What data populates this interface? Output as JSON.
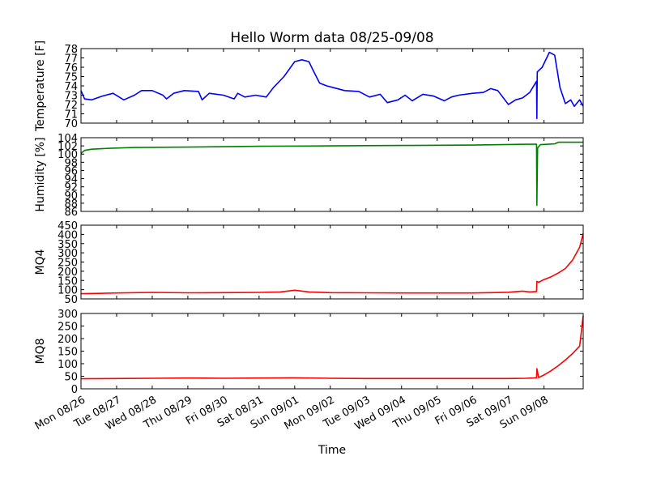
{
  "chart_data": {
    "title": "Hello Worm data 08/25-09/08",
    "xlabel": "Time",
    "x_tick_labels": [
      "Mon 08/26",
      "Tue 08/27",
      "Wed 08/28",
      "Thu 08/29",
      "Fri 08/30",
      "Sat 08/31",
      "Sun 09/01",
      "Mon 09/02",
      "Tue 09/03",
      "Wed 09/04",
      "Thu 09/05",
      "Fri 09/06",
      "Sat 09/07",
      "Sun 09/08"
    ],
    "x_range_days": [
      0,
      14.1
    ],
    "panels": [
      {
        "type": "line",
        "ylabel": "Temperature [F]",
        "ylim": [
          70,
          78
        ],
        "yticks": [
          70,
          71,
          72,
          73,
          74,
          75,
          76,
          77,
          78
        ],
        "color": "#0000ff",
        "x": [
          0,
          0.1,
          0.3,
          0.6,
          0.9,
          1.2,
          1.5,
          1.7,
          2.0,
          2.3,
          2.4,
          2.6,
          2.9,
          3.3,
          3.4,
          3.6,
          4.0,
          4.3,
          4.4,
          4.6,
          4.9,
          5.2,
          5.4,
          5.7,
          6.0,
          6.2,
          6.4,
          6.5,
          6.7,
          6.9,
          7.1,
          7.4,
          7.8,
          8.1,
          8.4,
          8.6,
          8.9,
          9.1,
          9.3,
          9.6,
          9.9,
          10.2,
          10.4,
          10.6,
          11.0,
          11.3,
          11.5,
          11.7,
          12.0,
          12.2,
          12.4,
          12.6,
          12.79,
          12.8,
          12.81,
          12.95,
          13.15,
          13.3,
          13.45,
          13.6,
          13.75,
          13.85,
          14.0,
          14.1
        ],
        "values": [
          73.5,
          72.6,
          72.5,
          72.9,
          73.2,
          72.5,
          73.0,
          73.5,
          73.5,
          73.0,
          72.6,
          73.2,
          73.5,
          73.4,
          72.5,
          73.2,
          73.0,
          72.6,
          73.2,
          72.8,
          73.0,
          72.8,
          73.8,
          75.0,
          76.6,
          76.8,
          76.6,
          75.8,
          74.3,
          74.0,
          73.8,
          73.5,
          73.4,
          72.8,
          73.1,
          72.2,
          72.5,
          73.0,
          72.4,
          73.1,
          72.9,
          72.4,
          72.8,
          73.0,
          73.2,
          73.3,
          73.7,
          73.5,
          72.0,
          72.5,
          72.7,
          73.3,
          74.5,
          70.5,
          75.5,
          76.0,
          77.6,
          77.3,
          73.8,
          72.1,
          72.5,
          71.8,
          72.5,
          71.8
        ]
      },
      {
        "type": "line",
        "ylabel": "Humidity [%]",
        "ylim": [
          86,
          104
        ],
        "yticks": [
          86,
          88,
          90,
          92,
          94,
          96,
          98,
          100,
          102,
          104
        ],
        "color": "#008000",
        "x": [
          0,
          0.1,
          0.3,
          0.8,
          1.5,
          3,
          5,
          7,
          9,
          11,
          12.5,
          12.79,
          12.8,
          12.82,
          12.9,
          13.3,
          13.4,
          14.1
        ],
        "values": [
          100.2,
          100.9,
          101.2,
          101.4,
          101.6,
          101.7,
          101.9,
          102.0,
          102.1,
          102.2,
          102.4,
          102.4,
          87.5,
          101.5,
          102.3,
          102.5,
          102.9,
          102.9
        ]
      },
      {
        "type": "line",
        "ylabel": "MQ4",
        "ylim": [
          50,
          450
        ],
        "yticks": [
          50,
          100,
          150,
          200,
          250,
          300,
          350,
          400,
          450
        ],
        "color": "#ff0000",
        "x": [
          0,
          0.5,
          1,
          2,
          3,
          4,
          5,
          5.6,
          6,
          6.4,
          7,
          8,
          9,
          10,
          11,
          11.5,
          12,
          12.4,
          12.6,
          12.79,
          12.8,
          12.85,
          13,
          13.2,
          13.4,
          13.6,
          13.8,
          14.0,
          14.1
        ],
        "values": [
          78,
          80,
          82,
          85,
          83,
          84,
          85,
          88,
          97,
          88,
          84,
          83,
          82,
          82,
          82,
          84,
          86,
          92,
          88,
          90,
          145,
          140,
          155,
          170,
          190,
          215,
          260,
          330,
          405
        ]
      },
      {
        "type": "line",
        "ylabel": "MQ8",
        "ylim": [
          0,
          300
        ],
        "yticks": [
          0,
          50,
          100,
          150,
          200,
          250,
          300
        ],
        "color": "#ff0000",
        "x": [
          0,
          1,
          2,
          3,
          4,
          5,
          6,
          7,
          8,
          9,
          10,
          11,
          12,
          12.5,
          12.79,
          12.8,
          12.85,
          13,
          13.2,
          13.4,
          13.6,
          13.8,
          14.0,
          14.1
        ],
        "values": [
          40,
          41,
          42,
          43,
          42,
          43,
          44,
          42,
          41,
          41,
          41,
          41,
          41,
          42,
          44,
          80,
          45,
          55,
          72,
          92,
          115,
          140,
          170,
          290
        ]
      }
    ]
  }
}
